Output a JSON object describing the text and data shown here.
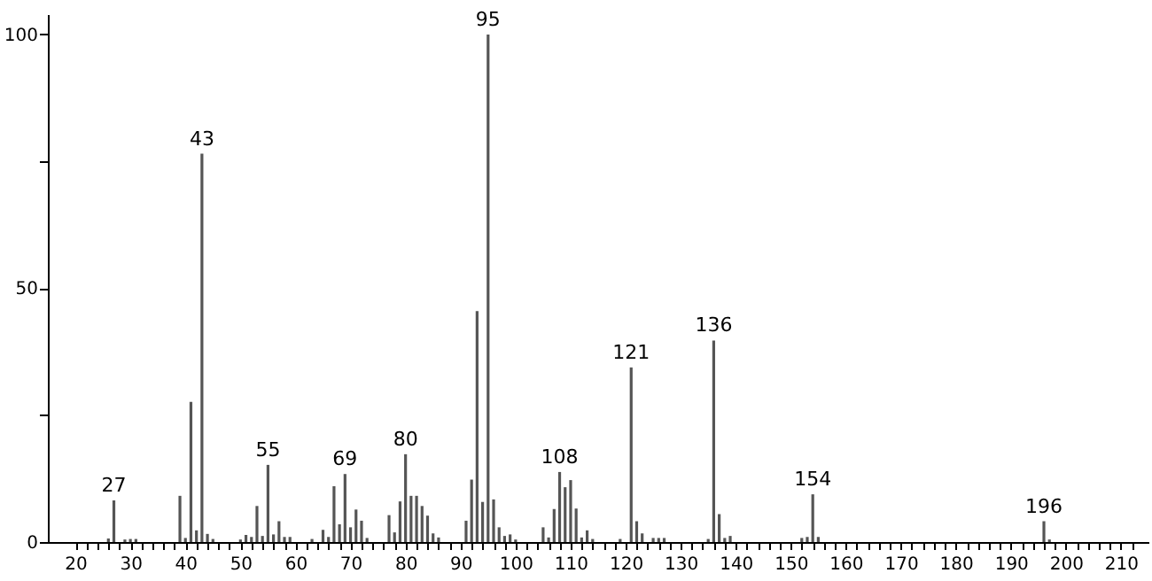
{
  "chart_data": {
    "type": "bar",
    "color": "#555555",
    "grid": false,
    "x": [
      26,
      27,
      29,
      30,
      31,
      39,
      40,
      41,
      42,
      43,
      44,
      45,
      50,
      51,
      52,
      53,
      54,
      55,
      56,
      57,
      58,
      59,
      63,
      65,
      66,
      67,
      68,
      69,
      70,
      71,
      72,
      73,
      77,
      78,
      79,
      80,
      81,
      82,
      83,
      84,
      85,
      86,
      91,
      92,
      93,
      94,
      95,
      96,
      97,
      98,
      99,
      100,
      105,
      106,
      107,
      108,
      109,
      110,
      111,
      112,
      113,
      114,
      119,
      121,
      122,
      123,
      125,
      126,
      127,
      135,
      136,
      137,
      138,
      139,
      152,
      153,
      154,
      155,
      196,
      197
    ],
    "values": [
      0.7,
      8.2,
      0.5,
      0.6,
      0.6,
      9.1,
      0.8,
      27.6,
      2.3,
      76.5,
      1.6,
      0.6,
      0.5,
      1.4,
      1.0,
      7.1,
      1.2,
      15.2,
      1.5,
      4.1,
      1.0,
      1.0,
      0.6,
      2.4,
      1.0,
      11.0,
      3.5,
      13.4,
      2.9,
      6.4,
      4.2,
      0.8,
      5.3,
      1.9,
      8.0,
      17.3,
      9.1,
      9.1,
      7.1,
      5.2,
      1.7,
      0.9,
      4.2,
      12.3,
      45.5,
      7.9,
      100,
      8.4,
      2.9,
      1.2,
      1.5,
      0.5,
      2.9,
      0.9,
      6.5,
      13.8,
      10.8,
      12.2,
      6.6,
      0.9,
      2.3,
      0.6,
      0.6,
      34.4,
      4.1,
      1.7,
      0.8,
      0.8,
      0.8,
      0.6,
      39.7,
      5.5,
      0.8,
      1.2,
      0.8,
      1.0,
      9.4,
      1.0,
      4.1,
      0.5
    ],
    "xlim": [
      15,
      215
    ],
    "xticks": [
      20,
      {
        "value": 22,
        "label": null
      },
      {
        "value": 24,
        "label": null
      },
      {
        "value": 26,
        "label": null
      },
      {
        "value": 28,
        "label": null
      },
      30,
      {
        "value": 32,
        "label": null
      },
      {
        "value": 34,
        "label": null
      },
      {
        "value": 36,
        "label": null
      },
      {
        "value": 38,
        "label": null
      },
      40,
      {
        "value": 42,
        "label": null
      },
      {
        "value": 44,
        "label": null
      },
      {
        "value": 46,
        "label": null
      },
      {
        "value": 48,
        "label": null
      },
      50,
      {
        "value": 52,
        "label": null
      },
      {
        "value": 54,
        "label": null
      },
      {
        "value": 56,
        "label": null
      },
      {
        "value": 58,
        "label": null
      },
      60,
      {
        "value": 62,
        "label": null
      },
      {
        "value": 64,
        "label": null
      },
      {
        "value": 66,
        "label": null
      },
      {
        "value": 68,
        "label": null
      },
      70,
      {
        "value": 72,
        "label": null
      },
      {
        "value": 74,
        "label": null
      },
      {
        "value": 76,
        "label": null
      },
      {
        "value": 78,
        "label": null
      },
      80,
      {
        "value": 82,
        "label": null
      },
      {
        "value": 84,
        "label": null
      },
      {
        "value": 86,
        "label": null
      },
      {
        "value": 88,
        "label": null
      },
      90,
      {
        "value": 92,
        "label": null
      },
      {
        "value": 94,
        "label": null
      },
      {
        "value": 96,
        "label": null
      },
      {
        "value": 98,
        "label": null
      },
      100,
      {
        "value": 102,
        "label": null
      },
      {
        "value": 104,
        "label": null
      },
      {
        "value": 106,
        "label": null
      },
      {
        "value": 108,
        "label": null
      },
      110,
      {
        "value": 112,
        "label": null
      },
      {
        "value": 114,
        "label": null
      },
      {
        "value": 116,
        "label": null
      },
      {
        "value": 118,
        "label": null
      },
      120,
      {
        "value": 122,
        "label": null
      },
      {
        "value": 124,
        "label": null
      },
      {
        "value": 126,
        "label": null
      },
      {
        "value": 128,
        "label": null
      },
      130,
      {
        "value": 132,
        "label": null
      },
      {
        "value": 134,
        "label": null
      },
      {
        "value": 136,
        "label": null
      },
      {
        "value": 138,
        "label": null
      },
      140,
      {
        "value": 142,
        "label": null
      },
      {
        "value": 144,
        "label": null
      },
      {
        "value": 146,
        "label": null
      },
      {
        "value": 148,
        "label": null
      },
      150,
      {
        "value": 152,
        "label": null
      },
      {
        "value": 154,
        "label": null
      },
      {
        "value": 156,
        "label": null
      },
      {
        "value": 158,
        "label": null
      },
      160,
      {
        "value": 162,
        "label": null
      },
      {
        "value": 164,
        "label": null
      },
      {
        "value": 166,
        "label": null
      },
      {
        "value": 168,
        "label": null
      },
      170,
      {
        "value": 172,
        "label": null
      },
      {
        "value": 174,
        "label": null
      },
      {
        "value": 176,
        "label": null
      },
      {
        "value": 178,
        "label": null
      },
      180,
      {
        "value": 182,
        "label": null
      },
      {
        "value": 184,
        "label": null
      },
      {
        "value": 186,
        "label": null
      },
      {
        "value": 188,
        "label": null
      },
      190,
      {
        "value": 192,
        "label": null
      },
      {
        "value": 194,
        "label": null
      },
      {
        "value": 196,
        "label": null
      },
      {
        "value": 198,
        "label": null
      },
      200,
      {
        "value": 202,
        "label": null
      },
      {
        "value": 204,
        "label": null
      },
      {
        "value": 206,
        "label": null
      },
      {
        "value": 208,
        "label": null
      },
      210,
      {
        "value": 212,
        "label": null
      }
    ],
    "ylim": [
      0,
      104
    ],
    "yticks": [
      0,
      {
        "value": 25,
        "label": null
      },
      50,
      {
        "value": 75,
        "label": null
      },
      100
    ],
    "annotations": [
      {
        "text": "27",
        "x": 27,
        "y": 8.2
      },
      {
        "text": "43",
        "x": 43,
        "y": 76.5
      },
      {
        "text": "55",
        "x": 55,
        "y": 15.2
      },
      {
        "text": "69",
        "x": 69,
        "y": 13.4
      },
      {
        "text": "80",
        "x": 80,
        "y": 17.3
      },
      {
        "text": "95",
        "x": 95,
        "y": 100
      },
      {
        "text": "108",
        "x": 108,
        "y": 13.8
      },
      {
        "text": "121",
        "x": 121,
        "y": 34.4
      },
      {
        "text": "136",
        "x": 136,
        "y": 39.7
      },
      {
        "text": "154",
        "x": 154,
        "y": 9.4
      },
      {
        "text": "196",
        "x": 196,
        "y": 4.1
      }
    ]
  }
}
